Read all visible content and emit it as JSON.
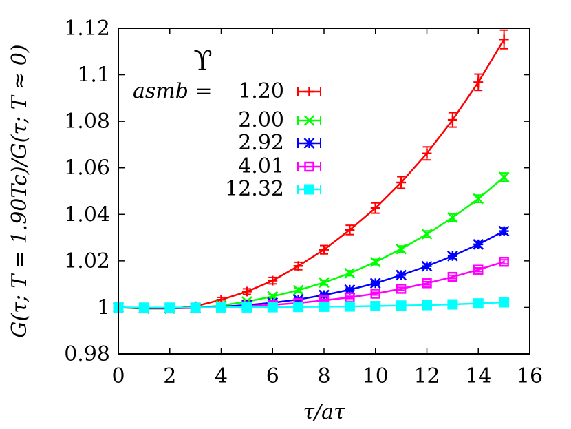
{
  "chart_data": {
    "type": "line",
    "xlabel": "τ/aτ",
    "ylabel": "G(τ; T = 1.90Tc)/G(τ; T ≈ 0)",
    "xlim": [
      0,
      16
    ],
    "ylim": [
      0.98,
      1.12
    ],
    "x_ticks": [
      "0",
      "2",
      "4",
      "6",
      "8",
      "10",
      "12",
      "14",
      "16"
    ],
    "y_ticks": [
      "0.98",
      "1",
      "1.02",
      "1.04",
      "1.06",
      "1.08",
      "1.1",
      "1.12"
    ],
    "legend": {
      "symbol": "ϒ",
      "heading": "asmb =",
      "placement": "top-left"
    },
    "x": [
      0,
      1,
      2,
      3,
      4,
      5,
      6,
      7,
      8,
      9,
      10,
      11,
      12,
      13,
      14,
      15
    ],
    "series": [
      {
        "name": "1.20",
        "color": "#ff0000",
        "marker": "plus",
        "values": [
          1.0,
          0.9995,
          0.9995,
          1.0005,
          1.0033,
          1.0068,
          1.0115,
          1.0178,
          1.0248,
          1.0333,
          1.0427,
          1.0537,
          1.0662,
          1.0806,
          1.0968,
          1.1152
        ],
        "errors": [
          0.0,
          0.0008,
          0.0008,
          0.001,
          0.001,
          0.0012,
          0.0014,
          0.0016,
          0.0018,
          0.002,
          0.0022,
          0.0025,
          0.0028,
          0.0031,
          0.0035,
          0.004
        ]
      },
      {
        "name": "2.00",
        "color": "#00ff00",
        "marker": "x",
        "values": [
          1.0,
          0.9995,
          0.9995,
          0.9998,
          1.0008,
          1.0025,
          1.0047,
          1.0074,
          1.0107,
          1.0147,
          1.0195,
          1.0251,
          1.0315,
          1.0386,
          1.0467,
          1.056
        ],
        "errors": [
          0.0,
          0.0005,
          0.0005,
          0.0005,
          0.0006,
          0.0007,
          0.0008,
          0.0009,
          0.001,
          0.0011,
          0.0012,
          0.0013,
          0.0014,
          0.0015,
          0.0016,
          0.0018
        ]
      },
      {
        "name": "2.92",
        "color": "#0000ff",
        "marker": "star",
        "values": [
          1.0,
          0.9997,
          0.9997,
          0.9998,
          1.0003,
          1.001,
          1.002,
          1.0034,
          1.0053,
          1.0076,
          1.0104,
          1.0139,
          1.0177,
          1.0221,
          1.0271,
          1.0328
        ],
        "errors": [
          0.0,
          0.0004,
          0.0004,
          0.0004,
          0.0004,
          0.0005,
          0.0005,
          0.0006,
          0.0007,
          0.0007,
          0.0008,
          0.0009,
          0.001,
          0.0011,
          0.0012,
          0.0013
        ]
      },
      {
        "name": "4.01",
        "color": "#ff00ff",
        "marker": "open-square",
        "values": [
          1.0,
          0.9998,
          0.9998,
          0.9998,
          1.0001,
          1.0005,
          1.0011,
          1.0019,
          1.003,
          1.0043,
          1.0059,
          1.008,
          1.0104,
          1.0131,
          1.0162,
          1.0196
        ],
        "errors": [
          0.0,
          0.0003,
          0.0003,
          0.0003,
          0.0003,
          0.0004,
          0.0004,
          0.0004,
          0.0005,
          0.0005,
          0.0006,
          0.0006,
          0.0007,
          0.0007,
          0.0008,
          0.0009
        ]
      },
      {
        "name": "12.32",
        "color": "#00ffff",
        "marker": "filled-square",
        "values": [
          1.0,
          0.9999,
          0.9999,
          0.9999,
          1.0,
          1.0,
          1.0001,
          1.0002,
          1.0003,
          1.0004,
          1.0006,
          1.0008,
          1.001,
          1.0013,
          1.0017,
          1.0022
        ],
        "errors": [
          0.0,
          0.0002,
          0.0002,
          0.0002,
          0.0002,
          0.0002,
          0.0002,
          0.0002,
          0.0002,
          0.0003,
          0.0003,
          0.0003,
          0.0003,
          0.0003,
          0.0004,
          0.0004
        ]
      }
    ],
    "grid": false
  }
}
